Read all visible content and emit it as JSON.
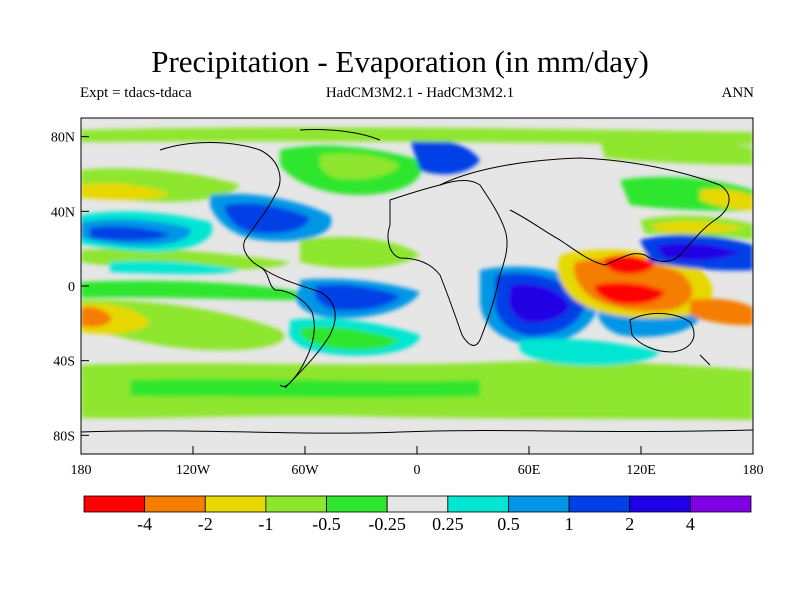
{
  "header": {
    "title": "Precipitation - Evaporation (in mm/day)",
    "left": "Expt = tdacs-tdaca",
    "center": "HadCM3M2.1 - HadCM3M2.1",
    "right": "ANN"
  },
  "axes": {
    "lat_ticks": [
      "80N",
      "40N",
      "0",
      "40S",
      "80S"
    ],
    "lon_ticks": [
      "180",
      "120W",
      "60W",
      "0",
      "60E",
      "120E",
      "180"
    ]
  },
  "colorbar": {
    "colors": [
      "#ff0000",
      "#f57d00",
      "#e6d800",
      "#8ee62e",
      "#2ee62e",
      "#e6e6e6",
      "#00e6d2",
      "#0096e6",
      "#0040e6",
      "#2000e6",
      "#8000e6"
    ],
    "labels": [
      "-4",
      "-2",
      "-1",
      "-0.5",
      "-0.25",
      "0.25",
      "0.5",
      "1",
      "2",
      "4"
    ]
  },
  "chart_data": {
    "type": "heatmap",
    "title": "Precipitation - Evaporation (in mm/day)",
    "projection": "cylindrical equidistant",
    "xlim": [
      -180,
      180
    ],
    "ylim": [
      -90,
      90
    ],
    "levels": [
      -4,
      -2,
      -1,
      -0.5,
      -0.25,
      0.25,
      0.5,
      1,
      2,
      4
    ]
  }
}
